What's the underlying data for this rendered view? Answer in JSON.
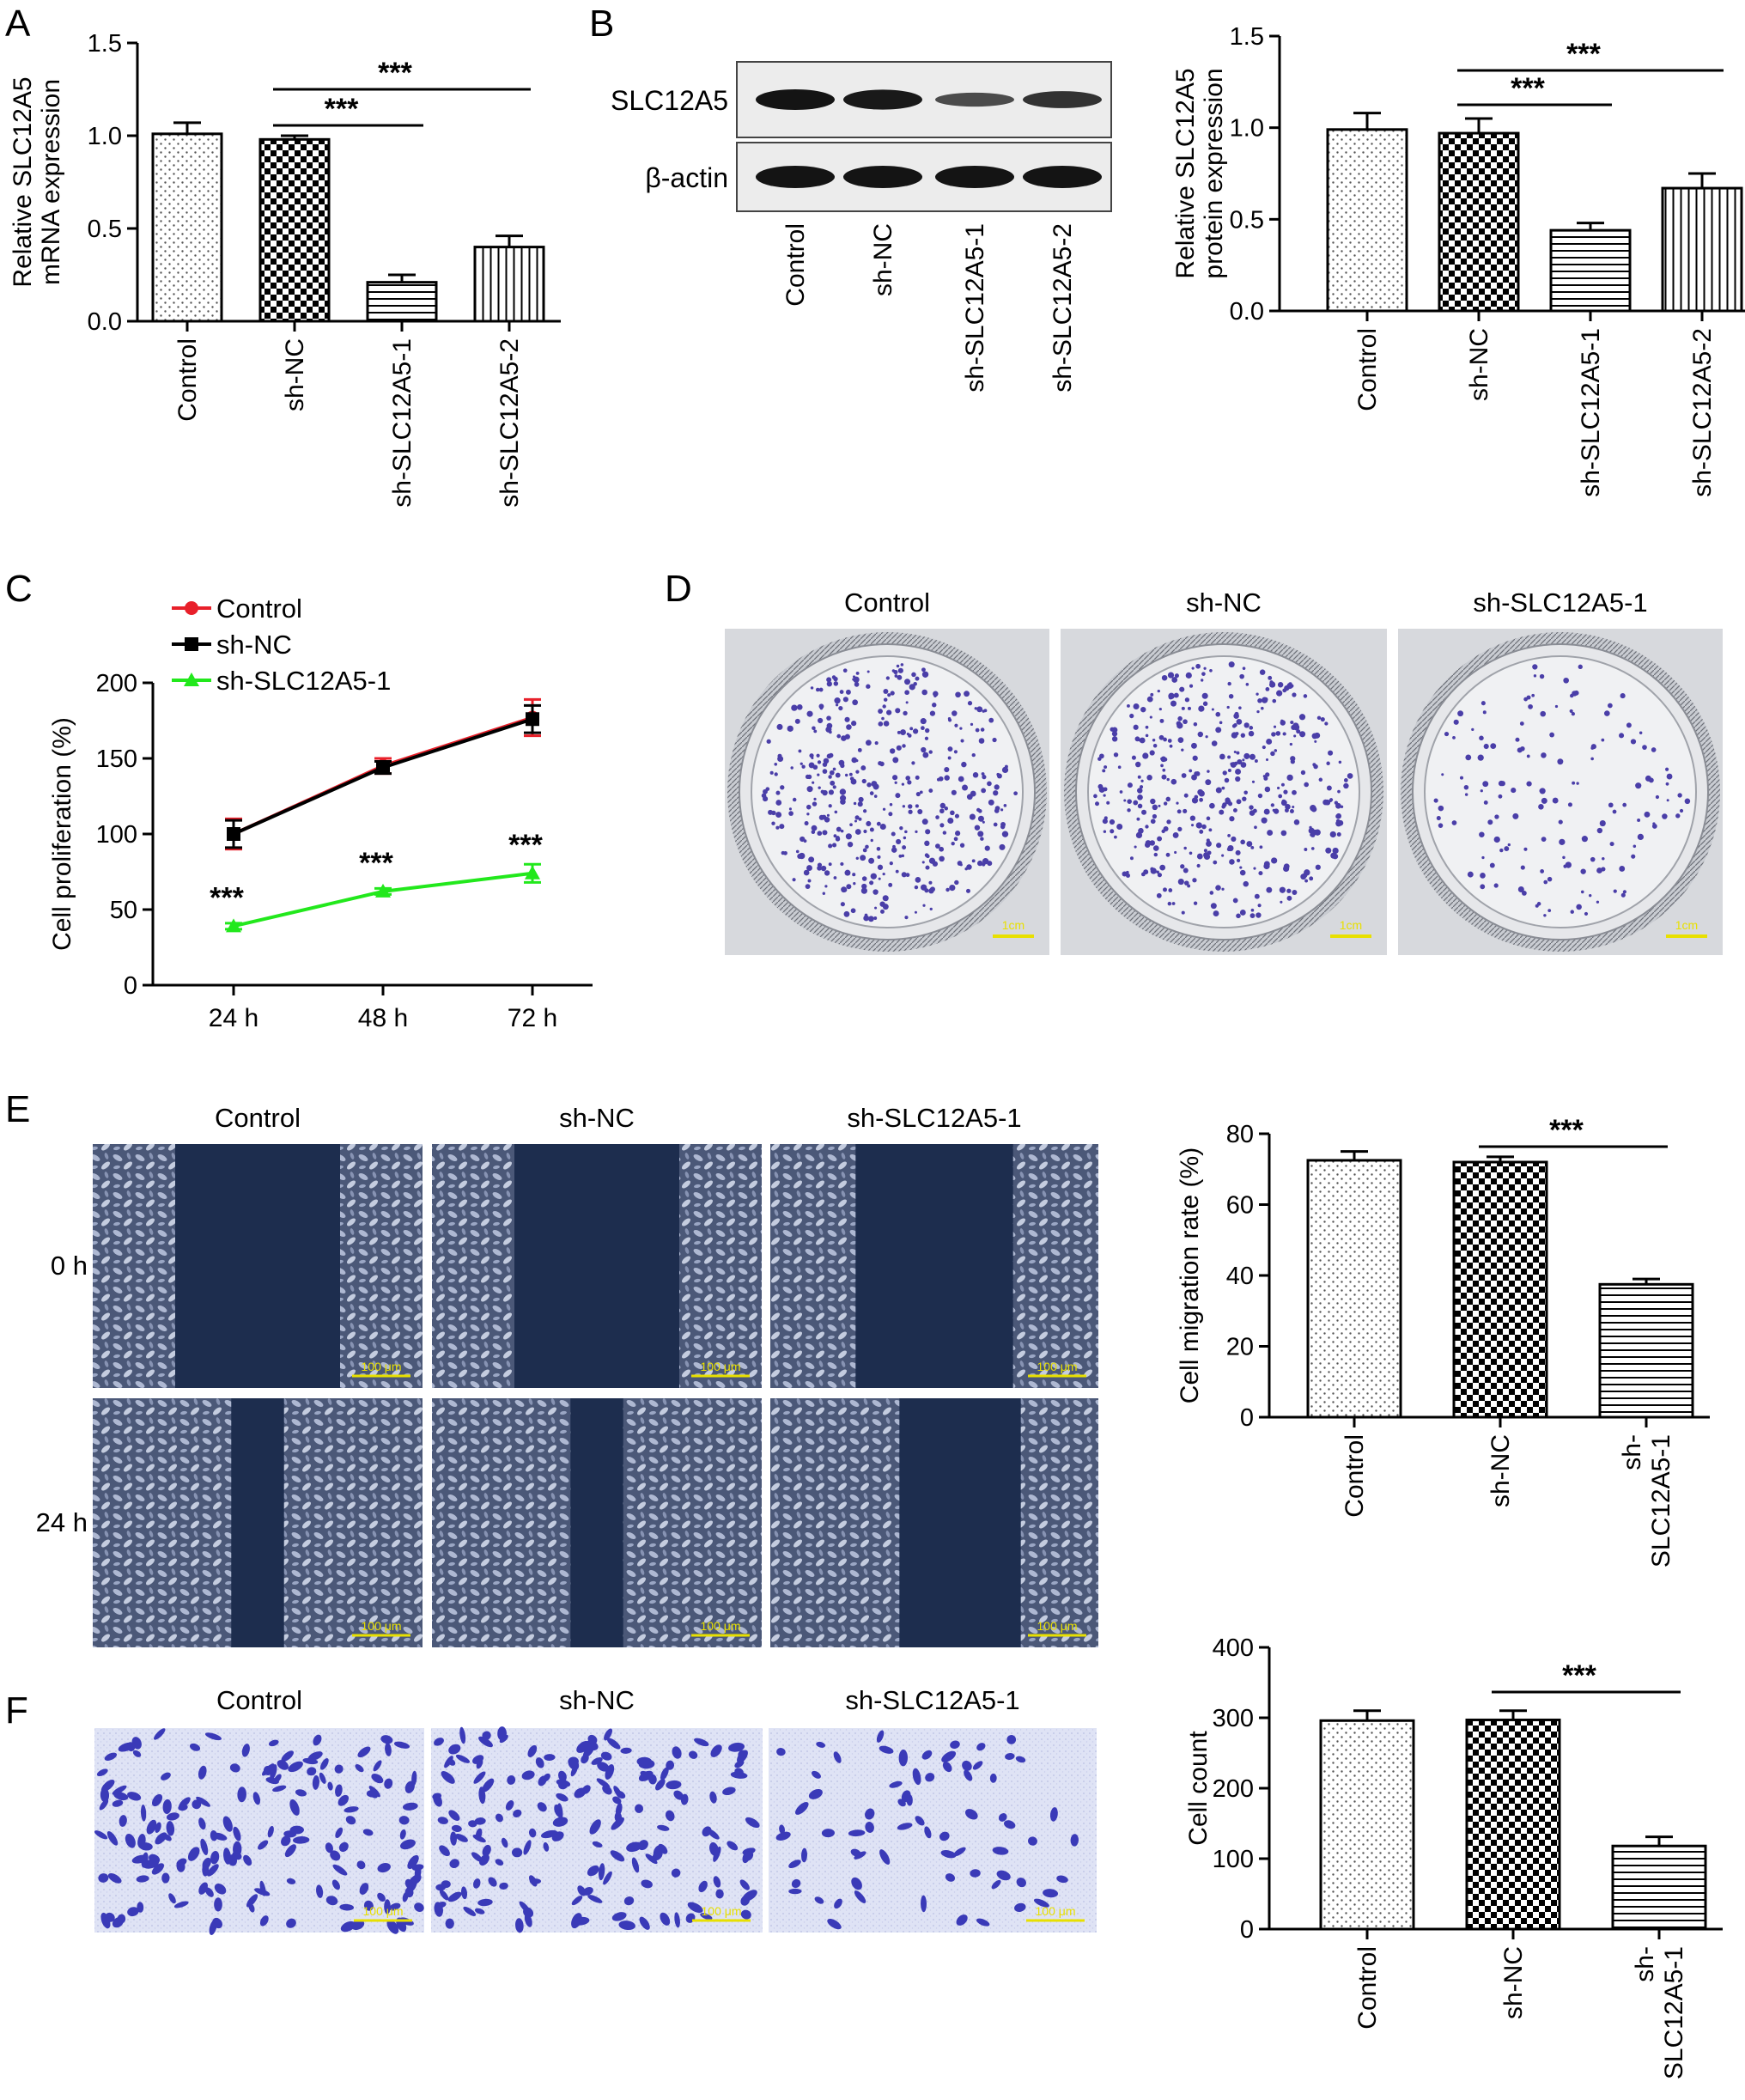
{
  "panel_letters": [
    "A",
    "B",
    "C",
    "D",
    "E",
    "F"
  ],
  "colors": {
    "control_line": "#e8202a",
    "shnc_line": "#000000",
    "knock_line": "#22e81c",
    "scale_bar": "#e8e000",
    "well_bg": "#d7d9dd",
    "dot": "#4a3ea8",
    "scratch_gap": "#1d2d4e",
    "transwell_bg": "#dbe0f4",
    "transwell_cell": "#3a3ab8"
  },
  "icons": [
    "western-blot-image",
    "colony-well-photo",
    "scratch-wound-photo",
    "transwell-photo"
  ],
  "panel_A": {
    "chart_data": {
      "type": "bar",
      "categories": [
        "Control",
        "sh-NC",
        "sh-SLC12A5-1",
        "sh-SLC12A5-2"
      ],
      "values": [
        1.01,
        0.98,
        0.21,
        0.4
      ],
      "errors": [
        0.06,
        0.02,
        0.04,
        0.06
      ],
      "ylabel_lines": [
        "Relative SLC12A5",
        "mRNA expression"
      ],
      "ylim": [
        0,
        1.5
      ],
      "yticks": [
        "0.0",
        "0.5",
        "1.0",
        "1.5"
      ],
      "significance": [
        {
          "from": "sh-NC",
          "to": "sh-SLC12A5-1",
          "label": "***"
        },
        {
          "from": "sh-NC",
          "to": "sh-SLC12A5-2",
          "label": "***"
        }
      ]
    }
  },
  "panel_B": {
    "blot_rows": [
      "SLC12A5",
      "β-actin"
    ],
    "lane_labels": [
      "Control",
      "sh-NC",
      "sh-SLC12A5-1",
      "sh-SLC12A5-2"
    ],
    "band_intensity": {
      "SLC12A5": [
        1.0,
        0.95,
        0.45,
        0.7
      ],
      "β-actin": [
        1.0,
        1.0,
        1.0,
        1.0
      ]
    },
    "chart_data": {
      "type": "bar",
      "categories": [
        "Control",
        "sh-NC",
        "sh-SLC12A5-1",
        "sh-SLC12A5-2"
      ],
      "values": [
        0.99,
        0.97,
        0.44,
        0.67
      ],
      "errors": [
        0.09,
        0.08,
        0.04,
        0.08
      ],
      "ylabel_lines": [
        "Relative SLC12A5",
        "protein expression"
      ],
      "ylim": [
        0,
        1.5
      ],
      "yticks": [
        "0.0",
        "0.5",
        "1.0",
        "1.5"
      ],
      "significance": [
        {
          "from": "sh-NC",
          "to": "sh-SLC12A5-1",
          "label": "***"
        },
        {
          "from": "sh-NC",
          "to": "sh-SLC12A5-2",
          "label": "***"
        }
      ]
    }
  },
  "panel_C": {
    "chart_data": {
      "type": "line",
      "x": [
        "24 h",
        "48 h",
        "72 h"
      ],
      "series": [
        {
          "name": "Control",
          "values": [
            100,
            145,
            177
          ],
          "errors": [
            10,
            5,
            12
          ]
        },
        {
          "name": "sh-NC",
          "values": [
            100,
            144,
            176
          ],
          "errors": [
            9,
            4,
            9
          ]
        },
        {
          "name": "sh-SLC12A5-1",
          "values": [
            39,
            62,
            74
          ],
          "errors": [
            2,
            2,
            6
          ]
        }
      ],
      "ylabel": "Cell proliferation (%)",
      "ylim": [
        0,
        200
      ],
      "yticks": [
        "0",
        "50",
        "100",
        "150",
        "200"
      ],
      "significance_labels": [
        "***",
        "***",
        "***"
      ],
      "legend_position": "top-left"
    }
  },
  "panel_D": {
    "titles": [
      "Control",
      "sh-NC",
      "sh-SLC12A5-1"
    ],
    "scale_label": "1cm",
    "colony_density": [
      1.0,
      1.0,
      0.35
    ]
  },
  "panel_E": {
    "titles": [
      "Control",
      "sh-NC",
      "sh-SLC12A5-1"
    ],
    "row_labels": [
      "0 h",
      "24 h"
    ],
    "scale_label": "100 μm",
    "chart_data": {
      "type": "bar",
      "categories": [
        "Control",
        "sh-NC",
        "sh-SLC12A5-1"
      ],
      "tick_label_lines": [
        [
          "Control"
        ],
        [
          "sh-NC"
        ],
        [
          "sh-",
          "SLC12A5-1"
        ]
      ],
      "values": [
        72.5,
        72.0,
        37.5
      ],
      "errors": [
        2.5,
        1.5,
        1.5
      ],
      "ylabel": "Cell migration rate (%)",
      "ylim": [
        0,
        80
      ],
      "yticks": [
        "0",
        "20",
        "40",
        "60",
        "80"
      ],
      "significance": [
        {
          "from": "sh-NC",
          "to": "sh-SLC12A5-1",
          "label": "***"
        }
      ]
    }
  },
  "panel_F": {
    "titles": [
      "Control",
      "sh-NC",
      "sh-SLC12A5-1"
    ],
    "scale_label": "100 μm",
    "chart_data": {
      "type": "bar",
      "categories": [
        "Control",
        "sh-NC",
        "sh-SLC12A5-1"
      ],
      "tick_label_lines": [
        [
          "Control"
        ],
        [
          "sh-NC"
        ],
        [
          "sh-",
          "SLC12A5-1"
        ]
      ],
      "values": [
        296,
        297,
        118
      ],
      "errors": [
        14,
        13,
        13
      ],
      "ylabel": "Cell count",
      "ylim": [
        0,
        400
      ],
      "yticks": [
        "0",
        "100",
        "200",
        "300",
        "400"
      ],
      "significance": [
        {
          "from": "sh-NC",
          "to": "sh-SLC12A5-1",
          "label": "***"
        }
      ]
    }
  }
}
